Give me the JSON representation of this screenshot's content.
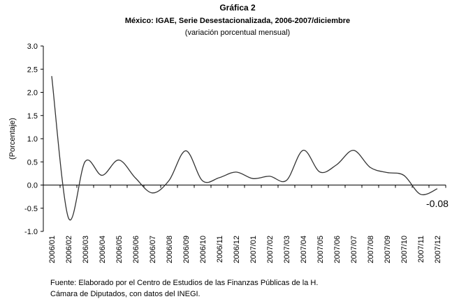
{
  "chart_data": {
    "type": "line",
    "title": "Gráfica 2",
    "subtitle": "México: IGAE, Serie Desestacionalizada, 2006-2007/diciembre",
    "subtitle2": "(variación porcentual mensual)",
    "y_label": "(Porcentaje)",
    "source": [
      "Fuente: Elaborado por el Centro de Estudios de las Finanzas Públicas de la H.",
      "Cámara de Diputados, con datos del INEGI."
    ],
    "categories": [
      "2006/01",
      "2006/02",
      "2006/03",
      "2006/04",
      "2006/05",
      "2006/06",
      "2006/07",
      "2006/08",
      "2006/09",
      "2006/10",
      "2006/11",
      "2006/12",
      "2007/01",
      "2007/02",
      "2007/03",
      "2007/04",
      "2007/05",
      "2007/06",
      "2007/07",
      "2007/08",
      "2007/09",
      "2007/10",
      "2007/11",
      "2007/12"
    ],
    "values": [
      2.35,
      -0.71,
      0.51,
      0.21,
      0.54,
      0.15,
      -0.17,
      0.1,
      0.74,
      0.09,
      0.16,
      0.28,
      0.14,
      0.19,
      0.1,
      0.75,
      0.28,
      0.44,
      0.75,
      0.38,
      0.27,
      0.21,
      -0.2,
      -0.08
    ],
    "color": "#333333",
    "ylim": [
      -1,
      3
    ],
    "yticks": [
      {
        "value": -1,
        "label": "-1.0"
      },
      -0.5,
      {
        "value": 0,
        "label": "0.0"
      },
      0.5,
      {
        "value": 1,
        "label": "1.0"
      },
      1.5,
      {
        "value": 2,
        "label": "2.0"
      },
      2.5,
      {
        "value": 3,
        "label": "3.0"
      }
    ]
  }
}
